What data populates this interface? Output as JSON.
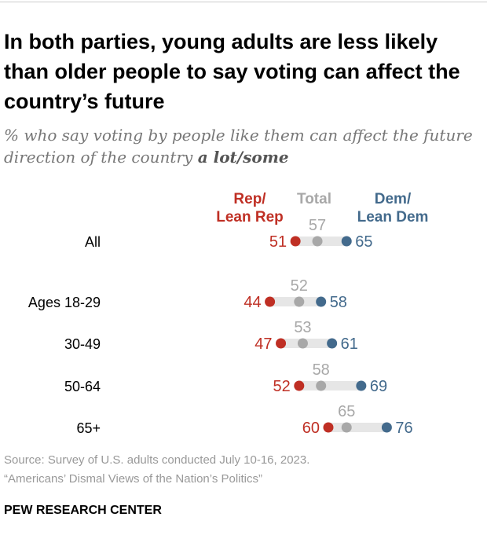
{
  "title": "In both parties, young adults are less likely than older people to say voting can affect the country’s future",
  "subtitle_main": "% who say voting by people like them can affect the future direction of the country ",
  "subtitle_bold": "a lot/some",
  "source_line1": "Source: Survey of U.S. adults conducted July 10-16, 2023.",
  "source_line2": "“Americans’ Dismal Views of the Nation’s Politics”",
  "brand": "PEW RESEARCH CENTER",
  "chart_data": {
    "type": "dot",
    "categories": [
      "All",
      "Ages 18-29",
      "30-49",
      "50-64",
      "65+"
    ],
    "series": [
      {
        "name": "Rep/ Lean Rep",
        "label_lines": [
          "Rep/",
          "Lean Rep"
        ],
        "color": "#bf2f24",
        "values": [
          51,
          44,
          47,
          52,
          60
        ]
      },
      {
        "name": "Total",
        "label_lines": [
          "Total"
        ],
        "color": "#a8a8a8",
        "values": [
          57,
          52,
          53,
          58,
          65
        ]
      },
      {
        "name": "Dem/ Lean Dem",
        "label_lines": [
          "Dem/",
          "Lean Dem"
        ],
        "color": "#436a8c",
        "values": [
          65,
          58,
          61,
          69,
          76
        ]
      }
    ],
    "bar_color": "#e6e6e6"
  }
}
